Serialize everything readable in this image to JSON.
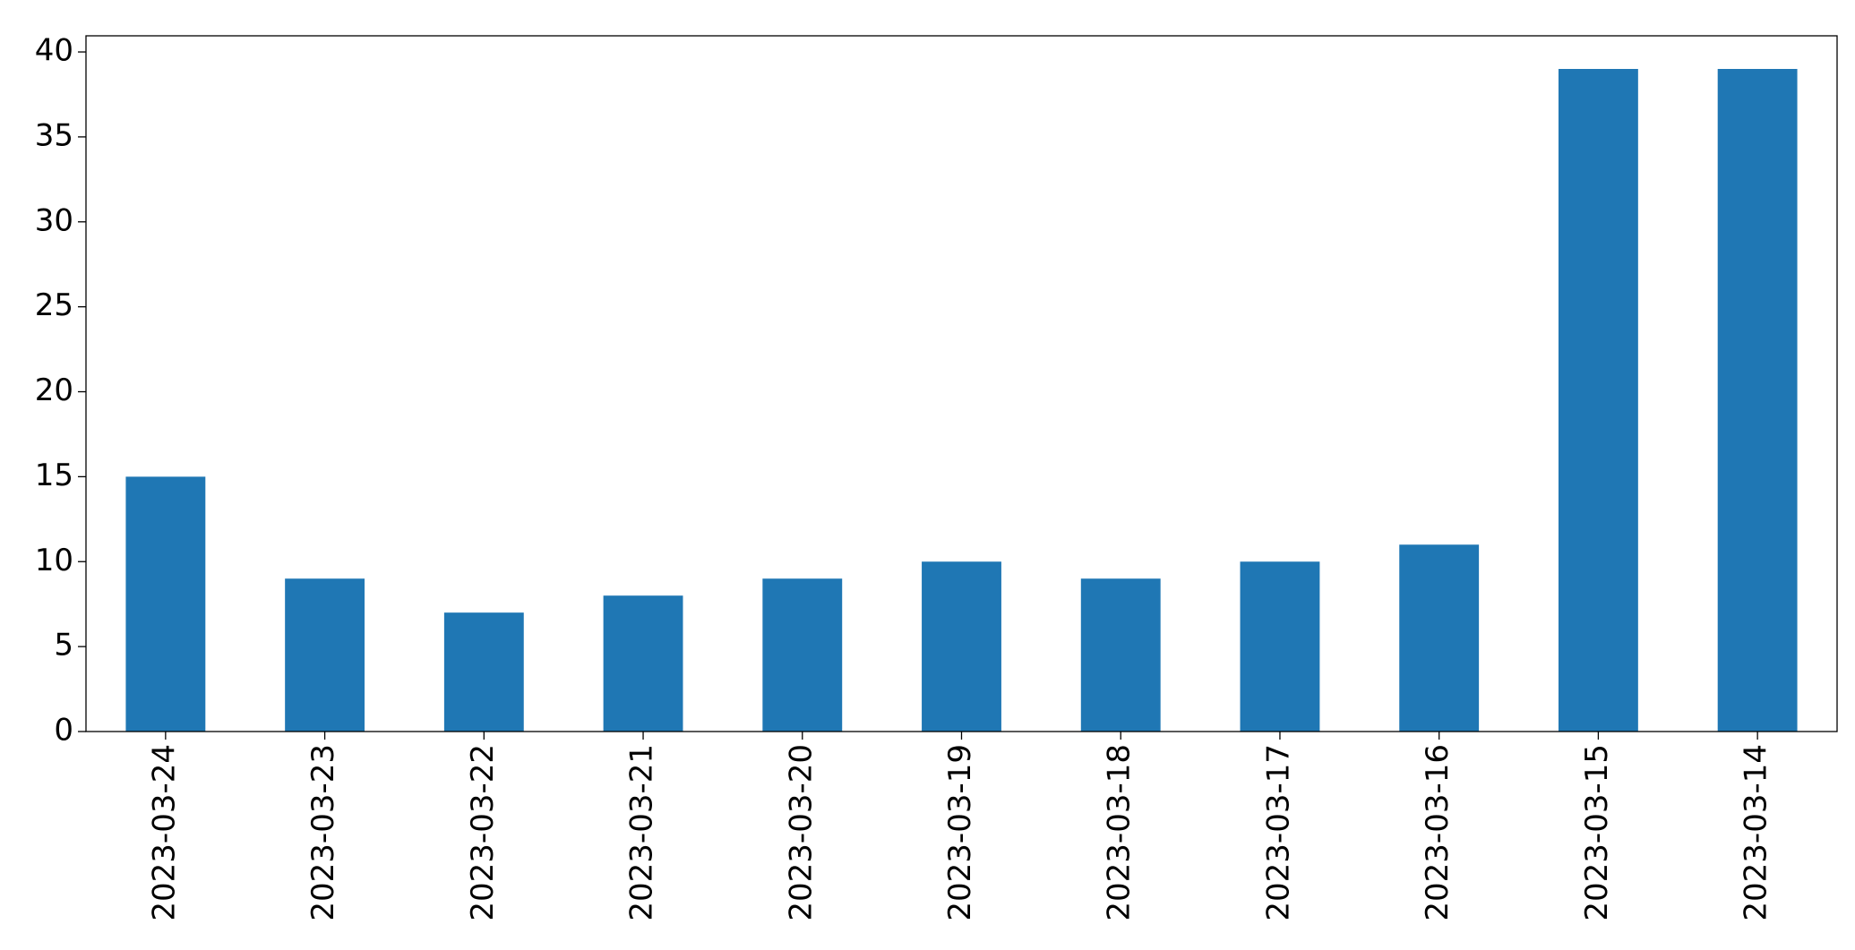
{
  "chart_data": {
    "type": "bar",
    "categories": [
      "2023-03-24",
      "2023-03-23",
      "2023-03-22",
      "2023-03-21",
      "2023-03-20",
      "2023-03-19",
      "2023-03-18",
      "2023-03-17",
      "2023-03-16",
      "2023-03-15",
      "2023-03-14"
    ],
    "values": [
      15,
      9,
      7,
      8,
      9,
      10,
      9,
      10,
      11,
      39,
      39
    ],
    "color": "#1f77b4",
    "ylim": [
      0,
      40.95
    ],
    "yticks": [
      0,
      5,
      10,
      15,
      20,
      25,
      30,
      35,
      40
    ],
    "grid": false
  }
}
